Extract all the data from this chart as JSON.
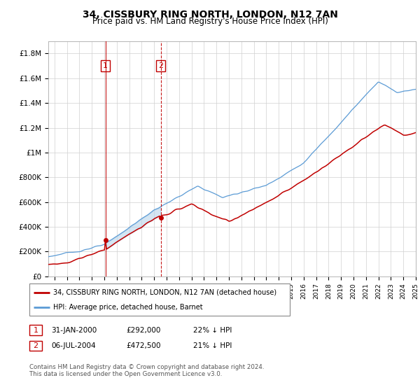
{
  "title": "34, CISSBURY RING NORTH, LONDON, N12 7AN",
  "subtitle": "Price paid vs. HM Land Registry's House Price Index (HPI)",
  "legend_line1": "34, CISSBURY RING NORTH, LONDON, N12 7AN (detached house)",
  "legend_line2": "HPI: Average price, detached house, Barnet",
  "annotation1_date": "31-JAN-2000",
  "annotation1_price": "£292,000",
  "annotation1_hpi": "22% ↓ HPI",
  "annotation2_date": "06-JUL-2004",
  "annotation2_price": "£472,500",
  "annotation2_hpi": "21% ↓ HPI",
  "footer": "Contains HM Land Registry data © Crown copyright and database right 2024.\nThis data is licensed under the Open Government Licence v3.0.",
  "hpi_color": "#5b9bd5",
  "price_color": "#c00000",
  "annotation_color": "#c00000",
  "fill_between_color": "#b8d4ea",
  "ylim": [
    0,
    1900000
  ],
  "yticks": [
    0,
    200000,
    400000,
    600000,
    800000,
    1000000,
    1200000,
    1400000,
    1600000,
    1800000
  ],
  "ytick_labels": [
    "£0",
    "£200K",
    "£400K",
    "£600K",
    "£800K",
    "£1M",
    "£1.2M",
    "£1.4M",
    "£1.6M",
    "£1.8M"
  ],
  "sale1_x": 2000.08,
  "sale1_y": 292000,
  "sale2_x": 2004.52,
  "sale2_y": 472500,
  "xmin": 1995.5,
  "xmax": 2025.0
}
